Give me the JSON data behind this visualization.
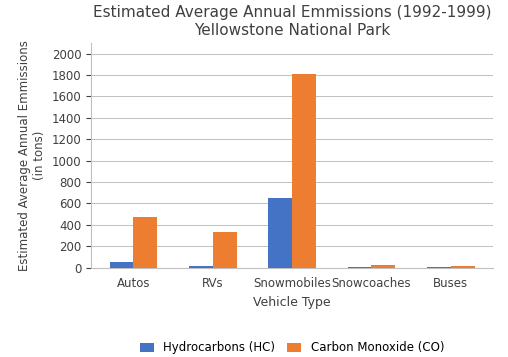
{
  "title_line1": "Estimated Average Annual Emmissions (1992-1999)",
  "title_line2": "Yellowstone National Park",
  "categories": [
    "Autos",
    "RVs",
    "Snowmobiles",
    "Snowcoaches",
    "Buses"
  ],
  "hc_values": [
    55,
    20,
    650,
    10,
    10
  ],
  "co_values": [
    470,
    335,
    1810,
    30,
    20
  ],
  "hc_color": "#4472C4",
  "co_color": "#ED7D31",
  "xlabel": "Vehicle Type",
  "ylabel": "Estimated Average Annual Emmissions\n(in tons)",
  "ylim": [
    0,
    2100
  ],
  "yticks": [
    0,
    200,
    400,
    600,
    800,
    1000,
    1200,
    1400,
    1600,
    1800,
    2000
  ],
  "legend_hc": "Hydrocarbons (HC)",
  "legend_co": "Carbon Monoxide (CO)",
  "bar_width": 0.3,
  "title_fontsize": 11,
  "label_fontsize": 9,
  "tick_fontsize": 8.5,
  "legend_fontsize": 8.5
}
